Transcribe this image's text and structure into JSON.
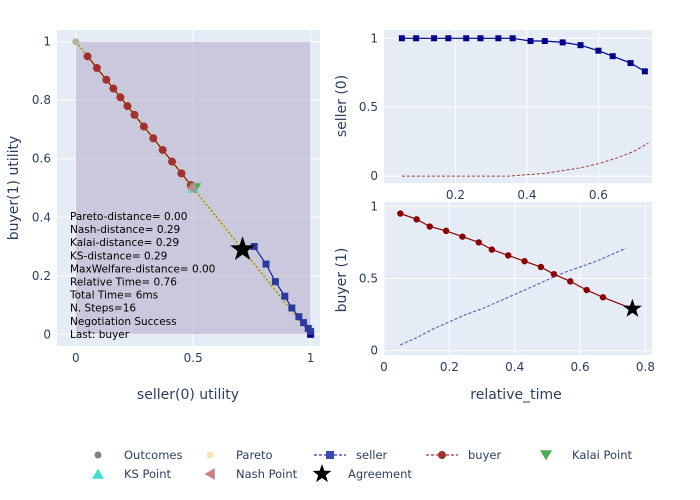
{
  "chart_data": [
    {
      "type": "scatter",
      "id": "utility",
      "xlabel": "seller(0) utility",
      "ylabel": "buyer(1) utility",
      "xlim": [
        -0.08,
        1.04
      ],
      "ylim": [
        -0.04,
        1.04
      ],
      "xticks": [
        0,
        0.5,
        1
      ],
      "yticks": [
        0,
        0.2,
        0.4,
        0.6,
        0.8,
        1
      ],
      "grid": true,
      "outcome_region": {
        "x0": 0,
        "x1": 1,
        "y0": 0,
        "y1": 1
      },
      "outcomes": {
        "x": [
          0,
          0.5,
          1
        ],
        "y": [
          1,
          0.5,
          0
        ]
      },
      "pareto": {
        "x": [
          0,
          1
        ],
        "y": [
          1,
          0
        ]
      },
      "seller_offers": {
        "x": [
          1.0,
          1.0,
          0.99,
          0.97,
          0.95,
          0.92,
          0.89,
          0.85,
          0.81,
          0.76
        ],
        "y": [
          0.0,
          0.01,
          0.02,
          0.04,
          0.06,
          0.09,
          0.13,
          0.18,
          0.24,
          0.3
        ]
      },
      "buyer_offers": {
        "x": [
          0.05,
          0.09,
          0.13,
          0.16,
          0.19,
          0.22,
          0.25,
          0.29,
          0.33,
          0.37,
          0.41,
          0.45,
          0.49
        ],
        "y": [
          0.95,
          0.91,
          0.87,
          0.84,
          0.81,
          0.78,
          0.75,
          0.71,
          0.67,
          0.63,
          0.59,
          0.55,
          0.51
        ]
      },
      "kalai_point": {
        "x": 0.5,
        "y": 0.5
      },
      "ks_point": {
        "x": 0.5,
        "y": 0.5
      },
      "nash_point": {
        "x": 0.5,
        "y": 0.5
      },
      "agreement": {
        "x": 0.71,
        "y": 0.29
      },
      "annotations": [
        "Pareto-distance= 0.00",
        "Nash-distance= 0.29",
        "Kalai-distance= 0.29",
        "KS-distance= 0.29",
        "MaxWelfare-distance= 0.00",
        "Relative Time= 0.76",
        "Total Time= 6ms",
        "N. Steps=16",
        "Negotiation Success",
        "Last: buyer"
      ]
    },
    {
      "type": "line",
      "id": "seller_time",
      "xlabel": "",
      "ylabel": "seller (0)",
      "xlim": [
        0,
        0.75
      ],
      "ylim": [
        -0.05,
        1.06
      ],
      "xticks": [
        0.2,
        0.4,
        0.6
      ],
      "yticks": [
        0,
        0.5,
        1
      ],
      "series": [
        {
          "name": "seller",
          "x": [
            0.05,
            0.09,
            0.14,
            0.18,
            0.23,
            0.27,
            0.32,
            0.36,
            0.41,
            0.45,
            0.5,
            0.55,
            0.6,
            0.64,
            0.69,
            0.73
          ],
          "y": [
            1.0,
            1.0,
            1.0,
            1.0,
            1.0,
            1.0,
            1.0,
            1.0,
            0.98,
            0.98,
            0.97,
            0.95,
            0.91,
            0.87,
            0.82,
            0.76
          ]
        },
        {
          "name": "buyer",
          "x": [
            0.05,
            0.1,
            0.15,
            0.2,
            0.25,
            0.3,
            0.35,
            0.4,
            0.45,
            0.5,
            0.55,
            0.6,
            0.65,
            0.7,
            0.74
          ],
          "y": [
            0.0,
            0.0,
            0.0,
            0.0,
            0.0,
            0.0,
            0.0,
            0.01,
            0.02,
            0.04,
            0.06,
            0.09,
            0.13,
            0.18,
            0.24
          ]
        }
      ]
    },
    {
      "type": "line",
      "id": "buyer_time",
      "xlabel": "relative_time",
      "ylabel": "buyer (1)",
      "xlim": [
        0,
        0.82
      ],
      "ylim": [
        -0.03,
        1.03
      ],
      "xticks": [
        0,
        0.2,
        0.4,
        0.6,
        0.8
      ],
      "yticks": [
        0,
        0.5,
        1
      ],
      "series": [
        {
          "name": "buyer",
          "x": [
            0.05,
            0.1,
            0.14,
            0.19,
            0.24,
            0.29,
            0.33,
            0.38,
            0.43,
            0.48,
            0.52,
            0.57,
            0.62,
            0.67
          ],
          "y": [
            0.95,
            0.91,
            0.86,
            0.83,
            0.79,
            0.75,
            0.7,
            0.66,
            0.62,
            0.58,
            0.53,
            0.48,
            0.42,
            0.37
          ]
        },
        {
          "name": "seller",
          "x": [
            0.05,
            0.1,
            0.15,
            0.2,
            0.25,
            0.3,
            0.35,
            0.4,
            0.45,
            0.5,
            0.55,
            0.6,
            0.65,
            0.7,
            0.74
          ],
          "y": [
            0.04,
            0.09,
            0.15,
            0.2,
            0.25,
            0.29,
            0.34,
            0.39,
            0.44,
            0.49,
            0.54,
            0.58,
            0.62,
            0.67,
            0.71
          ]
        }
      ],
      "agreement": {
        "x": 0.76,
        "y": 0.29
      }
    }
  ],
  "legend": {
    "placement": "bottom",
    "items": [
      {
        "label": "Outcomes",
        "kind": "dot",
        "color": "#808080"
      },
      {
        "label": "Pareto",
        "kind": "dot",
        "color": "#f5e6b3"
      },
      {
        "label": "seller",
        "kind": "line-square",
        "color": "#00008b"
      },
      {
        "label": "buyer",
        "kind": "line-circle",
        "color": "#8b0000"
      },
      {
        "label": "Kalai Point",
        "kind": "triangle-down",
        "color": "#4caf50"
      },
      {
        "label": "KS Point",
        "kind": "triangle-up",
        "color": "#40e0d0"
      },
      {
        "label": "Nash Point",
        "kind": "triangle-left",
        "color": "#c98383"
      },
      {
        "label": "Agreement",
        "kind": "star",
        "color": "#000000"
      }
    ]
  },
  "colors": {
    "plot_bg": "#e5ecf6",
    "grid": "#ffffff",
    "region": "#b6b0cc",
    "seller": "#00008b",
    "buyer": "#8b0000",
    "axis_text": "#2a3f5f"
  }
}
